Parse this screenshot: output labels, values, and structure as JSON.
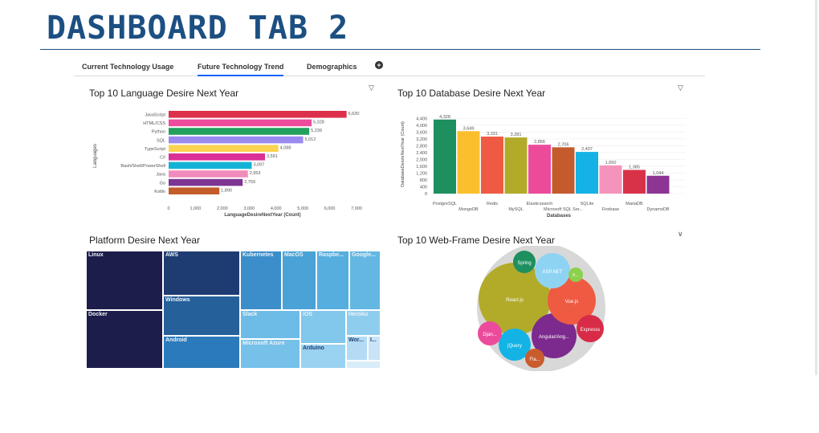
{
  "page": {
    "title": "DASHBOARD TAB 2",
    "tabs": [
      {
        "label": "Current Technology Usage"
      },
      {
        "label": "Future Technology Trend"
      },
      {
        "label": "Demographics"
      }
    ],
    "add_tab_icon": "plus-circle-icon",
    "filter_icon": "filter-icon"
  },
  "chart_data": [
    {
      "type": "bar",
      "orientation": "horizontal",
      "title": "Top 10 Language Desire Next Year",
      "xlabel": "LanguageDesireNextYear (Count)",
      "ylabel": "Languages",
      "categories": [
        "JavaScript",
        "HTML/CSS",
        "Python",
        "SQL",
        "TypeScript",
        "C#",
        "Bash/Shell/PowerShell",
        "Java",
        "Go",
        "Kotlin"
      ],
      "values": [
        6630,
        5328,
        5239,
        5012,
        4088,
        3591,
        3097,
        2953,
        2759,
        1890
      ],
      "value_labels": [
        "6,630",
        "5,328",
        "5,239",
        "5,012",
        "4,088",
        "3,591",
        "3,097",
        "2,953",
        "2,759",
        "1,890"
      ],
      "colors": [
        "#dc2f4b",
        "#ee4b9d",
        "#23a05d",
        "#9a8af0",
        "#fbd34f",
        "#db2f98",
        "#14b3d6",
        "#f08cbb",
        "#7c3592",
        "#c35c2a"
      ],
      "xlim": [
        0,
        7000
      ],
      "xticks": [
        0,
        1000,
        2000,
        3000,
        4000,
        5000,
        6000,
        7000
      ],
      "xtick_labels": [
        "0",
        "1,000",
        "2,000",
        "3,000",
        "4,000",
        "5,000",
        "6,000",
        "7,000"
      ]
    },
    {
      "type": "bar",
      "title": "Top 10 Database Desire Next Year",
      "xlabel": "Databases",
      "ylabel": "DatabaseDesireNextYear (Count)",
      "categories": [
        "PostgreSQL",
        "MongoDB",
        "Redis",
        "MySQL",
        "Elasticsearch",
        "Microsoft SQL Ser...",
        "SQLite",
        "Firebase",
        "MariaDB",
        "DynamoDB"
      ],
      "values": [
        4328,
        3649,
        3331,
        3281,
        2856,
        2706,
        2437,
        1650,
        1385,
        1044
      ],
      "value_labels": [
        "4,328",
        "3,649",
        "3,331",
        "3,281",
        "2,856",
        "2,706",
        "2,437",
        "1,650",
        "1,385",
        "1,044"
      ],
      "colors": [
        "#1e8f5f",
        "#fbbf2e",
        "#ef5b42",
        "#b2ab2a",
        "#ec4b9c",
        "#c35b2c",
        "#15b2e5",
        "#f494bc",
        "#d83248",
        "#8c3592"
      ],
      "ylim": [
        0,
        4600
      ],
      "yticks": [
        0,
        400,
        800,
        1200,
        1600,
        2000,
        2400,
        2800,
        3200,
        3600,
        4000,
        4400
      ],
      "ytick_labels": [
        "0",
        "400",
        "800",
        "1,200",
        "1,600",
        "2,000",
        "2,400",
        "2,800",
        "3,200",
        "3,600",
        "4,000",
        "4,400"
      ]
    },
    {
      "type": "treemap",
      "title": "Platform Desire Next Year",
      "labels": [
        "Linux",
        "Docker",
        "AWS",
        "Windows",
        "Android",
        "Kubernetes",
        "MacOS",
        "Raspbe...",
        "Google...",
        "Slack",
        "Microsoft Azure",
        "iOS",
        "Heroku",
        "Arduino",
        "Wor...",
        "I..."
      ],
      "colors": [
        "#1d1d4b",
        "#1d1d4b",
        "#1f3c72",
        "#25609a",
        "#2b7abb",
        "#3b8ec9",
        "#4aa2d6",
        "#56aede",
        "#63b7e2",
        "#6dbce7",
        "#76c1ea",
        "#82c7ec",
        "#8fcdef",
        "#9ad2f1",
        "#b3dcf4",
        "#c9e4f7"
      ]
    },
    {
      "type": "bubble",
      "title": "Top 10 Web-Frame Desire Next Year",
      "labels": [
        "React.js",
        "Angular/Ang...",
        "Vue.js",
        "ASP.NET",
        "jQuery",
        "Spring",
        "Expresss",
        "Djan...",
        "Fla...",
        "K..."
      ],
      "colors": [
        "#b2ab2a",
        "#7c2a8e",
        "#ef5b42",
        "#8fd3f2",
        "#14b3e6",
        "#1e8f5f",
        "#d82b48",
        "#ec4b9c",
        "#c95c2e",
        "#8bd14c"
      ]
    }
  ]
}
